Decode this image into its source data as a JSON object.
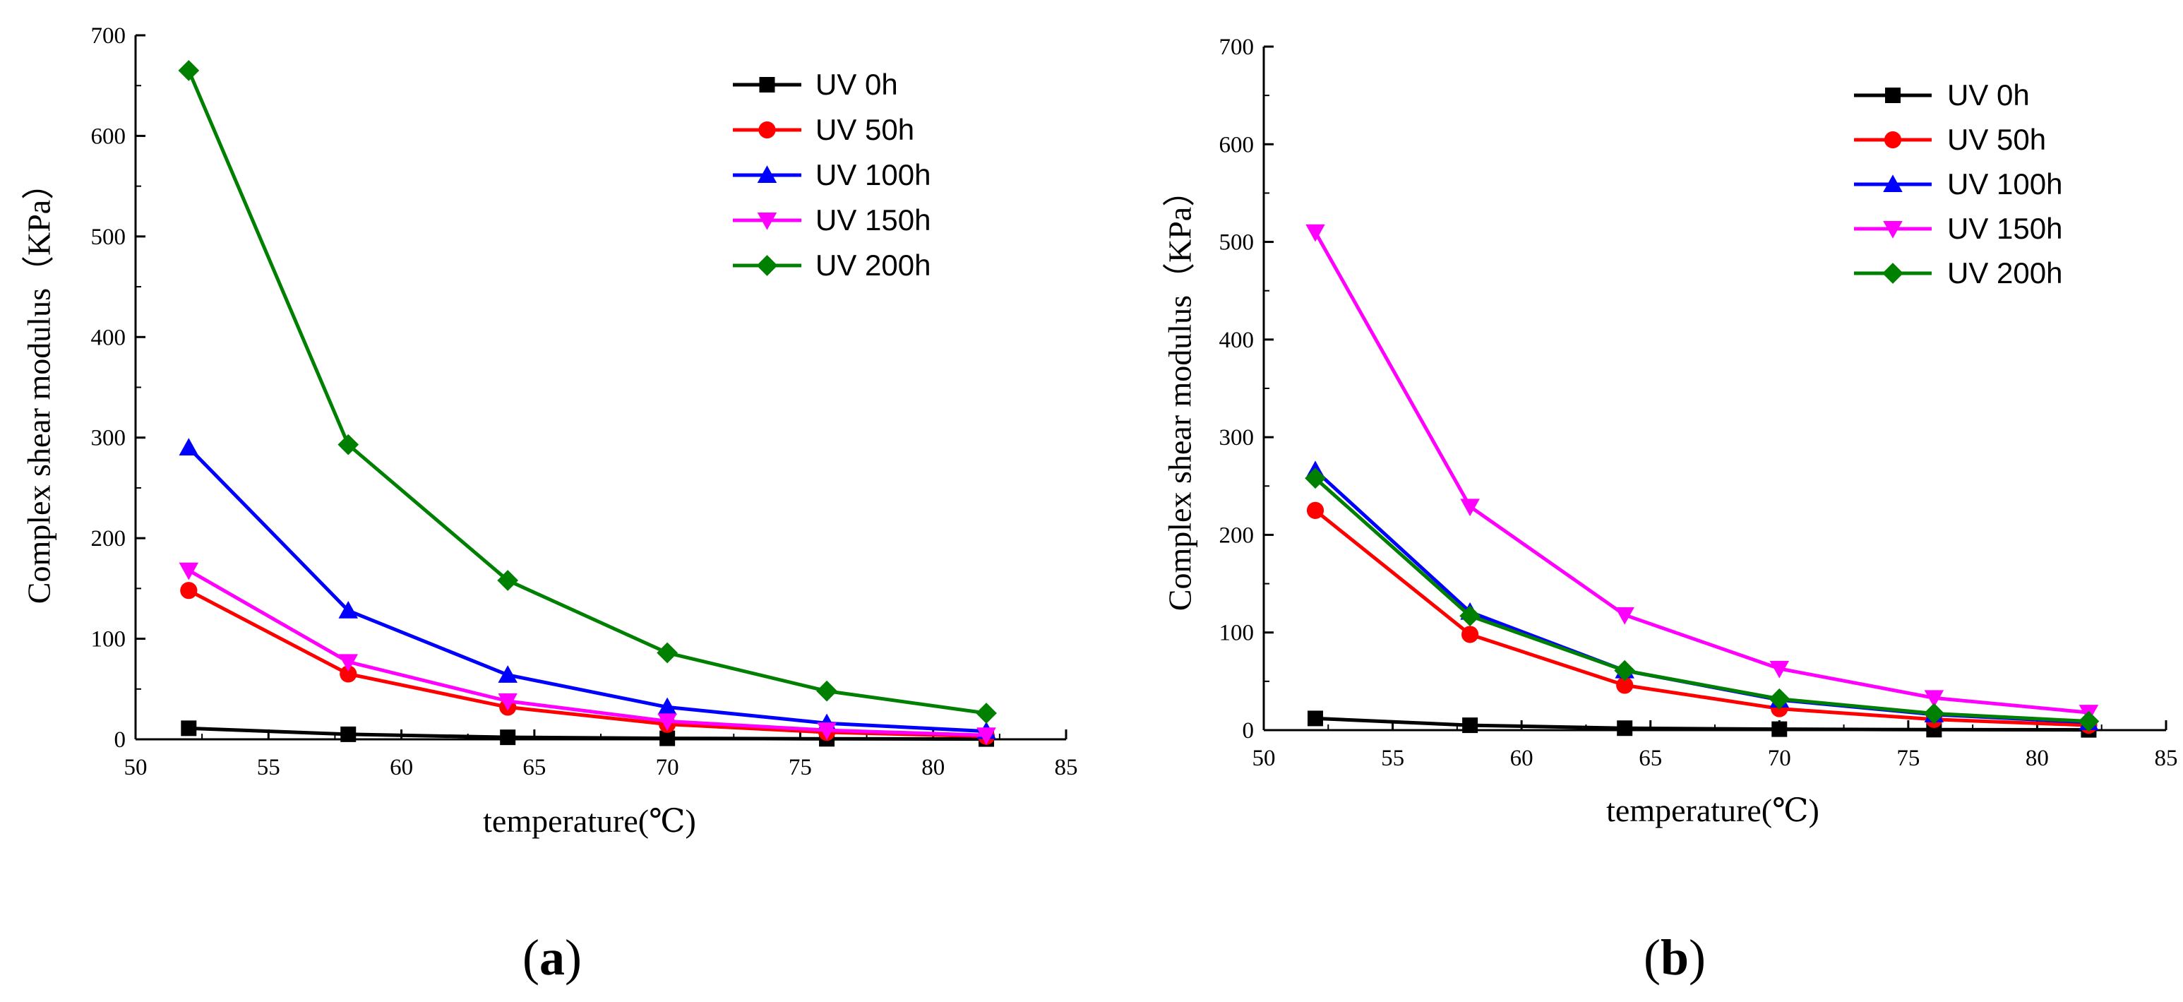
{
  "figure_labels": [
    {
      "open": "(",
      "letter": "a",
      "close": ")"
    },
    {
      "open": "(",
      "letter": "b",
      "close": ")"
    }
  ],
  "chart_data": [
    {
      "type": "line",
      "panel": "a",
      "title": "",
      "xlabel": "temperature(℃)",
      "ylabel": "Complex shear modulus（KPa）",
      "xlim": [
        50,
        85
      ],
      "ylim": [
        0,
        700
      ],
      "xticks": [
        50,
        55,
        60,
        65,
        70,
        75,
        80,
        85
      ],
      "yticks": [
        0,
        100,
        200,
        300,
        400,
        500,
        600,
        700
      ],
      "grid": false,
      "legend_position": "top-right",
      "x": [
        52,
        58,
        64,
        70,
        76,
        82
      ],
      "series": [
        {
          "name": "UV 0h",
          "color": "#000000",
          "marker": "square",
          "values": [
            11,
            5,
            2,
            1,
            0.5,
            0.3
          ]
        },
        {
          "name": "UV 50h",
          "color": "#ff0000",
          "marker": "circle",
          "values": [
            148,
            65,
            32,
            15,
            7,
            3
          ]
        },
        {
          "name": "UV 100h",
          "color": "#0000ff",
          "marker": "triangle-up",
          "values": [
            290,
            128,
            64,
            32,
            16,
            8
          ]
        },
        {
          "name": "UV 150h",
          "color": "#ff00ff",
          "marker": "triangle-down",
          "values": [
            168,
            77,
            38,
            18,
            9,
            4
          ]
        },
        {
          "name": "UV 200h",
          "color": "#008000",
          "marker": "diamond",
          "values": [
            665,
            293,
            158,
            86,
            48,
            26
          ]
        }
      ]
    },
    {
      "type": "line",
      "panel": "b",
      "title": "",
      "xlabel": "temperature(℃)",
      "ylabel": "Complex shear modulus（KPa）",
      "xlim": [
        50,
        85
      ],
      "ylim": [
        0,
        700
      ],
      "xticks": [
        50,
        55,
        60,
        65,
        70,
        75,
        80,
        85
      ],
      "yticks": [
        0,
        100,
        200,
        300,
        400,
        500,
        600,
        700
      ],
      "grid": false,
      "legend_position": "top-right",
      "x": [
        52,
        58,
        64,
        70,
        76,
        82
      ],
      "series": [
        {
          "name": "UV 0h",
          "color": "#000000",
          "marker": "square",
          "values": [
            12,
            5,
            2,
            1,
            0.5,
            0.3
          ]
        },
        {
          "name": "UV 50h",
          "color": "#ff0000",
          "marker": "circle",
          "values": [
            225,
            98,
            46,
            22,
            11,
            5
          ]
        },
        {
          "name": "UV 100h",
          "color": "#0000ff",
          "marker": "triangle-up",
          "values": [
            266,
            121,
            61,
            31,
            16,
            8
          ]
        },
        {
          "name": "UV 150h",
          "color": "#ff00ff",
          "marker": "triangle-down",
          "values": [
            510,
            229,
            118,
            63,
            33,
            18
          ]
        },
        {
          "name": "UV 200h",
          "color": "#008000",
          "marker": "diamond",
          "values": [
            258,
            117,
            61,
            32,
            17,
            9
          ]
        }
      ]
    }
  ]
}
